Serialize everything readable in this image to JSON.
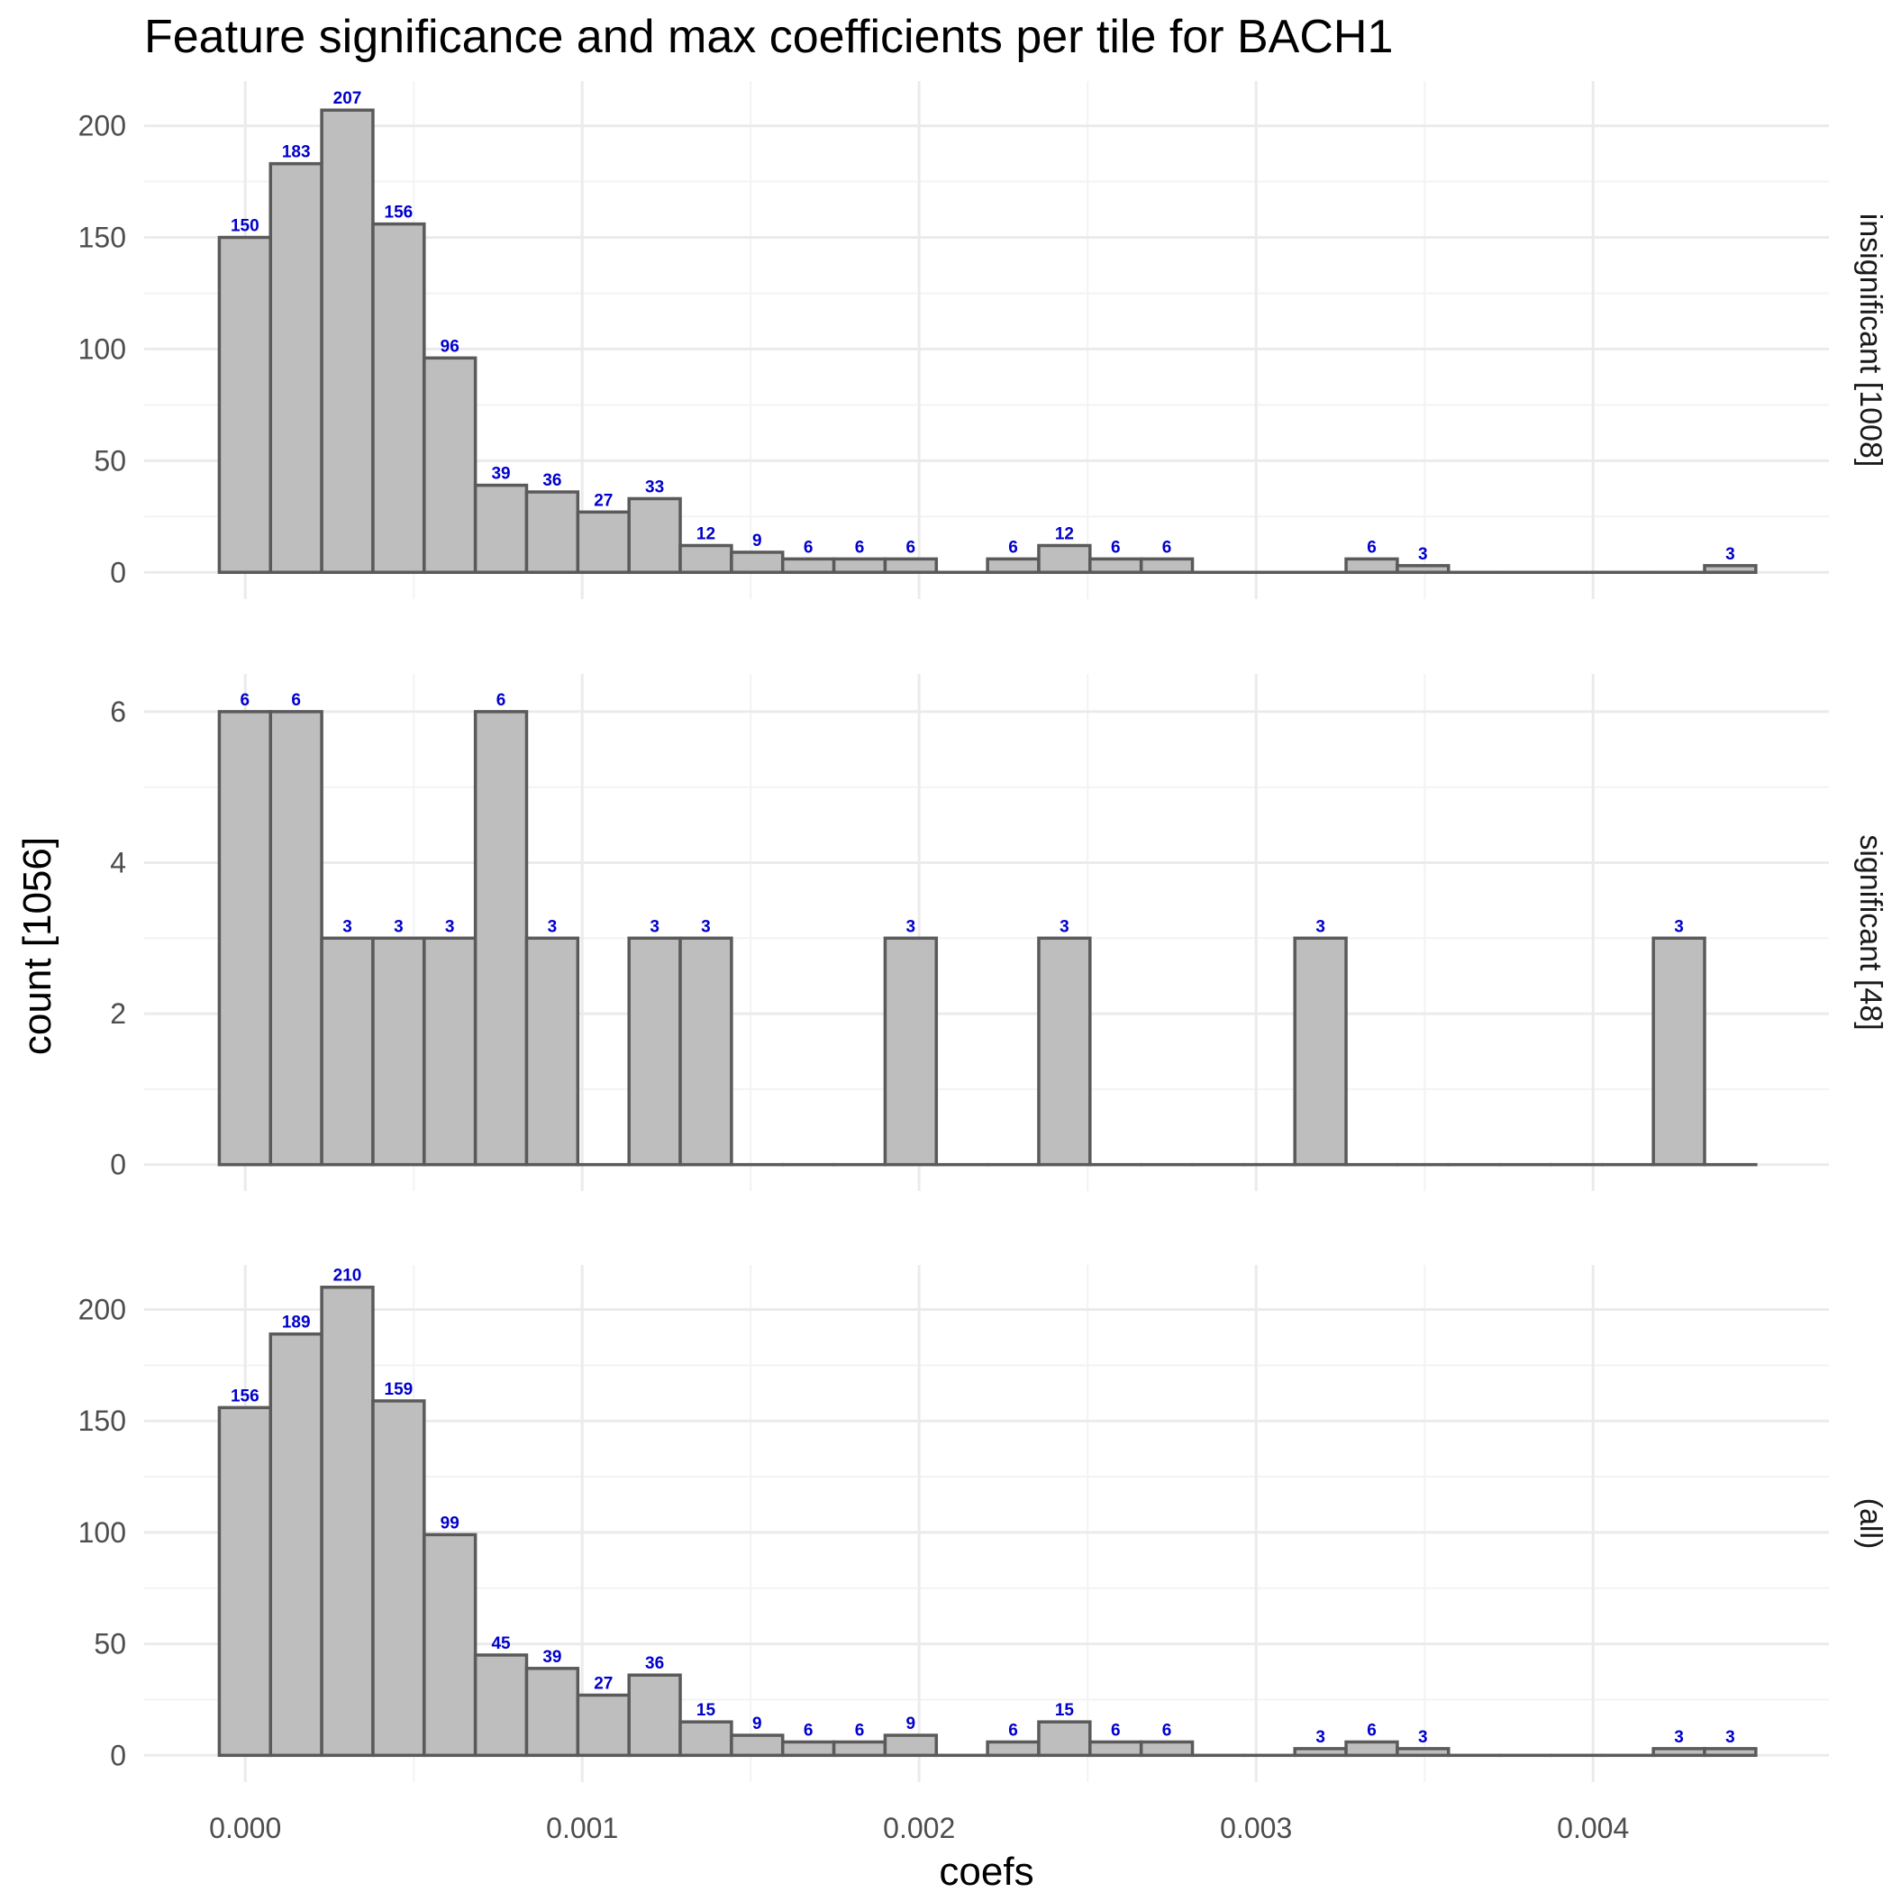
{
  "chart_data": {
    "type": "bar",
    "title": "Feature significance and max coefficients per tile for BACH1",
    "xlabel": "coefs",
    "ylabel": "count [1056]",
    "xlim": [
      -0.0003,
      0.0047
    ],
    "x_ticks": [
      {
        "value": 0.0,
        "label": "0.000"
      },
      {
        "value": 0.001,
        "label": "0.001"
      },
      {
        "value": 0.002,
        "label": "0.002"
      },
      {
        "value": 0.003,
        "label": "0.003"
      },
      {
        "value": 0.004,
        "label": "0.004"
      }
    ],
    "bin_width": 0.000152,
    "bin_start": -7.7e-05,
    "n_bins": 30,
    "grid": true,
    "colors": {
      "bar_fill": "#bebebe",
      "bar_stroke": "#5a5a5a",
      "label": "#0000CC",
      "grid_major": "#ebebeb",
      "grid_minor": "#f3f3f3"
    },
    "panels": [
      {
        "strip": "insignificant [1008]",
        "ylim": [
          -12,
          220
        ],
        "y_ticks": [
          {
            "value": 0,
            "label": "0"
          },
          {
            "value": 50,
            "label": "50"
          },
          {
            "value": 100,
            "label": "100"
          },
          {
            "value": 150,
            "label": "150"
          },
          {
            "value": 200,
            "label": "200"
          }
        ],
        "counts": [
          150,
          183,
          207,
          156,
          96,
          39,
          36,
          27,
          33,
          12,
          9,
          6,
          6,
          6,
          0,
          6,
          12,
          6,
          6,
          0,
          0,
          0,
          6,
          3,
          0,
          0,
          0,
          0,
          0,
          3
        ],
        "labels": [
          "150",
          "183",
          "207",
          "156",
          "96",
          "39",
          "36",
          "27",
          "33",
          "12",
          "9",
          "6",
          "6",
          "6",
          "",
          "6",
          "12",
          "6",
          "6",
          "",
          "",
          "",
          "6",
          "3",
          "",
          "",
          "",
          "",
          "",
          "3"
        ]
      },
      {
        "strip": "significant [48]",
        "ylim": [
          -0.35,
          6.5
        ],
        "y_ticks": [
          {
            "value": 0,
            "label": "0"
          },
          {
            "value": 2,
            "label": "2"
          },
          {
            "value": 4,
            "label": "4"
          },
          {
            "value": 6,
            "label": "6"
          }
        ],
        "counts": [
          6,
          6,
          3,
          3,
          3,
          6,
          3,
          0,
          3,
          3,
          0,
          0,
          0,
          3,
          0,
          0,
          3,
          0,
          0,
          0,
          0,
          3,
          0,
          0,
          0,
          0,
          0,
          0,
          3,
          0
        ],
        "labels": [
          "6",
          "6",
          "3",
          "3",
          "3",
          "6",
          "3",
          "",
          "3",
          "3",
          "",
          "",
          "",
          "3",
          "",
          "",
          "3",
          "",
          "",
          "",
          "",
          "3",
          "",
          "",
          "",
          "",
          "",
          "",
          "3",
          ""
        ]
      },
      {
        "strip": "(all)",
        "ylim": [
          -12,
          220
        ],
        "y_ticks": [
          {
            "value": 0,
            "label": "0"
          },
          {
            "value": 50,
            "label": "50"
          },
          {
            "value": 100,
            "label": "100"
          },
          {
            "value": 150,
            "label": "150"
          },
          {
            "value": 200,
            "label": "200"
          }
        ],
        "counts": [
          156,
          189,
          210,
          159,
          99,
          45,
          39,
          27,
          36,
          15,
          9,
          6,
          6,
          9,
          0,
          6,
          15,
          6,
          6,
          0,
          0,
          3,
          6,
          3,
          0,
          0,
          0,
          0,
          3,
          3
        ],
        "labels": [
          "156",
          "189",
          "210",
          "159",
          "99",
          "45",
          "39",
          "27",
          "36",
          "15",
          "9",
          "6",
          "6",
          "9",
          "",
          "6",
          "15",
          "6",
          "6",
          "",
          "",
          "3",
          "6",
          "3",
          "",
          "",
          "",
          "",
          "3",
          "3"
        ]
      }
    ]
  }
}
